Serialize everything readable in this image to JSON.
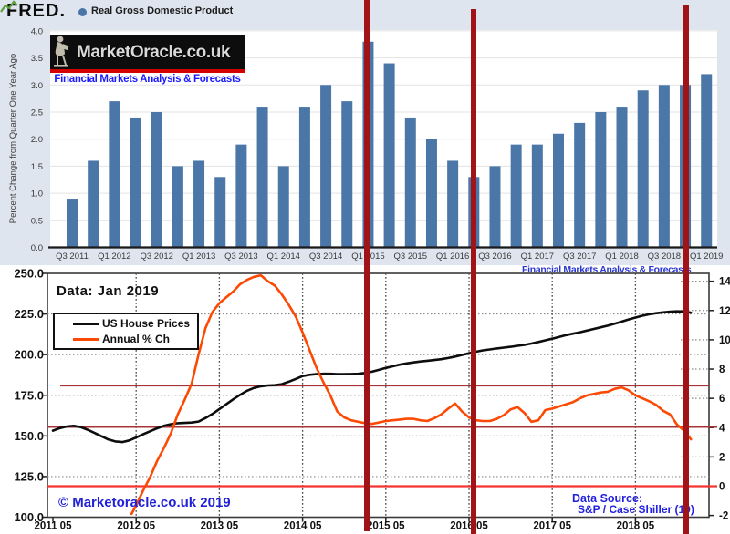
{
  "fred": {
    "logo_text": "FRED.",
    "series_label": "Real Gross Domestic Product",
    "sparkline_icon_color": "#5f9e3e",
    "legend_dot_color": "#4a75a7"
  },
  "banner": {
    "site_name": "MarketOracle.co.uk",
    "tagline": "Financial Markets Analysis & Forecasts",
    "strip_color": "#d40000"
  },
  "house": {
    "title_annotation": "Data: Jan 2019",
    "copyright": "© Marketoracle.co.uk 2019",
    "data_source_line1": "Data Source:",
    "data_source_line2": "S&P / Case Shiller (10)",
    "top_clipped_text": "Financial Markets Analysis & Forecasts"
  },
  "colors": {
    "fred_bar": "#4a76a8",
    "fred_background": "#dee5ee",
    "overlay_vertical_lines": "#a01316",
    "ref_dark_red": "#a93438",
    "ref_bright_red": "#f63333",
    "house_price_line": "#0d0d0d",
    "annual_pct_line": "#fc4a04",
    "link_blue": "#2121d8"
  },
  "chart_data": [
    {
      "type": "bar",
      "title": "Real Gross Domestic Product",
      "ylabel": "Percent Change from Quarter One Year Ago",
      "ylim": [
        0,
        4
      ],
      "grid": true,
      "bar_color": "#4a76a8",
      "y_tick_labels": [
        "0.0",
        "0.5",
        "1.0",
        "1.5",
        "2.0",
        "2.5",
        "3.0",
        "3.5",
        "4.0"
      ],
      "categories": [
        "Q3 2011",
        "Q4 2011",
        "Q1 2012",
        "Q2 2012",
        "Q3 2012",
        "Q4 2012",
        "Q1 2013",
        "Q2 2013",
        "Q3 2013",
        "Q4 2013",
        "Q1 2014",
        "Q2 2014",
        "Q3 2014",
        "Q4 2014",
        "Q1 2015",
        "Q2 2015",
        "Q3 2015",
        "Q4 2015",
        "Q1 2016",
        "Q2 2016",
        "Q3 2016",
        "Q4 2016",
        "Q1 2017",
        "Q2 2017",
        "Q3 2017",
        "Q4 2017",
        "Q1 2018",
        "Q2 2018",
        "Q3 2018",
        "Q4 2018",
        "Q1 2019"
      ],
      "values": [
        0.9,
        1.6,
        2.7,
        2.4,
        2.5,
        1.5,
        1.6,
        1.3,
        1.9,
        2.6,
        1.5,
        2.6,
        3.0,
        2.7,
        3.8,
        3.4,
        2.4,
        2.0,
        1.6,
        1.3,
        1.5,
        1.9,
        1.9,
        2.1,
        2.3,
        2.5,
        2.6,
        2.9,
        3.0,
        3.0,
        3.2
      ],
      "x_tick_labels": [
        "Q3 2011",
        "Q1 2012",
        "Q3 2012",
        "Q1 2013",
        "Q3 2013",
        "Q1 2014",
        "Q3 2014",
        "Q1 2015",
        "Q3 2015",
        "Q1 2016",
        "Q3 2016",
        "Q1 2017",
        "Q3 2017",
        "Q1 2018",
        "Q3 2018",
        "Q1 2019"
      ]
    },
    {
      "type": "line",
      "annotation": "Data: Jan 2019",
      "x_start_label": "2011 05",
      "x_tick_labels": [
        "2011 05",
        "2012 05",
        "2013 05",
        "2014 05",
        "2015 05",
        "2016 05",
        "2017 05",
        "2018 05"
      ],
      "left_axis_tick_labels": [
        "250.0",
        "225.0",
        "200.0",
        "175.0",
        "150.0",
        "125.0",
        "100.0"
      ],
      "left_axis_ticks": [
        250,
        225,
        200,
        175,
        150,
        125,
        100
      ],
      "left_ylim": [
        100,
        250
      ],
      "right_axis_ticks": [
        14,
        12,
        10,
        8,
        6,
        4,
        2,
        0,
        -2
      ],
      "right_ylim": [
        -2,
        14
      ],
      "legend_position": "top-left",
      "grid": true,
      "series": [
        {
          "name": "US House Prices",
          "color": "#0d0d0d",
          "axis": "left",
          "start_month_offset": 0,
          "values": [
            153.2,
            154.8,
            155.8,
            156.2,
            155.4,
            153.8,
            151.8,
            149.8,
            147.8,
            146.6,
            146.2,
            147.2,
            149.0,
            151.0,
            152.8,
            154.6,
            156.2,
            157.2,
            157.8,
            158.0,
            158.2,
            158.8,
            161.0,
            163.5,
            166.5,
            169.5,
            172.5,
            175.3,
            177.8,
            179.5,
            180.5,
            181.0,
            181.2,
            181.8,
            183.3,
            185.0,
            186.8,
            187.6,
            188.0,
            188.2,
            188.2,
            188.0,
            188.0,
            188.1,
            188.2,
            188.7,
            189.5,
            190.6,
            191.8,
            192.8,
            193.8,
            194.6,
            195.2,
            195.8,
            196.2,
            196.7,
            197.2,
            197.9,
            198.8,
            199.8,
            200.8,
            201.8,
            202.6,
            203.2,
            203.8,
            204.3,
            204.8,
            205.4,
            206.0,
            206.8,
            207.8,
            208.8,
            209.8,
            210.9,
            212.0,
            212.9,
            213.8,
            214.8,
            215.8,
            216.8,
            217.8,
            219.0,
            220.3,
            221.6,
            222.8,
            223.9,
            224.8,
            225.5,
            226.0,
            226.4,
            226.6,
            226.5,
            225.8
          ]
        },
        {
          "name": "Annual % Ch",
          "color": "#fc4a04",
          "axis": "right",
          "start_month_offset": 10,
          "values": [
            -3.0,
            -2.2,
            -1.3,
            -0.3,
            0.6,
            1.7,
            2.6,
            3.6,
            4.9,
            5.9,
            7.0,
            9.0,
            10.8,
            11.9,
            12.5,
            12.9,
            13.3,
            13.8,
            14.1,
            14.3,
            14.4,
            14.0,
            13.7,
            13.1,
            12.4,
            11.6,
            10.5,
            9.3,
            8.1,
            7.1,
            6.2,
            5.1,
            4.7,
            4.5,
            4.4,
            4.3,
            4.25,
            4.35,
            4.45,
            4.5,
            4.55,
            4.6,
            4.6,
            4.5,
            4.45,
            4.65,
            4.9,
            5.3,
            5.65,
            5.1,
            4.7,
            4.5,
            4.45,
            4.45,
            4.6,
            4.85,
            5.25,
            5.4,
            5.0,
            4.4,
            4.5,
            5.2,
            5.3,
            5.45,
            5.6,
            5.75,
            6.0,
            6.2,
            6.3,
            6.4,
            6.45,
            6.65,
            6.75,
            6.55,
            6.2,
            6.0,
            5.8,
            5.55,
            5.15,
            4.9,
            4.2,
            3.8,
            3.2
          ]
        }
      ],
      "ref_lines": [
        {
          "axis": "left",
          "value": 181,
          "color": "#a93438"
        },
        {
          "axis": "right",
          "value": 4.05,
          "color": "#a93438"
        },
        {
          "axis": "right",
          "value": 0,
          "color": "#f63333"
        }
      ]
    }
  ]
}
